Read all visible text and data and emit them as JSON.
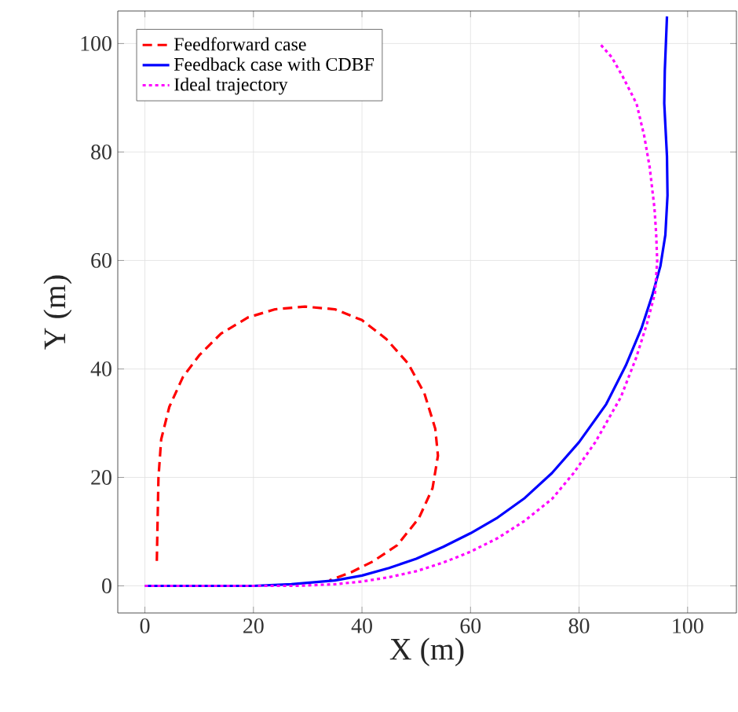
{
  "chart_data": {
    "type": "line",
    "xlabel": "X (m)",
    "ylabel": "Y (m)",
    "xlim": [
      -5,
      109
    ],
    "ylim": [
      -5,
      106
    ],
    "xticks": [
      0,
      20,
      40,
      60,
      80,
      100
    ],
    "yticks": [
      0,
      20,
      40,
      60,
      80,
      100
    ],
    "grid": true,
    "legend": "top left",
    "series": [
      {
        "name": "Feedforward case",
        "color": "#ff0000",
        "line_style": "dashed",
        "x": [
          2.2,
          2.3,
          2.5,
          3,
          4.5,
          7,
          10,
          14,
          19,
          24,
          29.5,
          35,
          40,
          44.5,
          48.5,
          51.5,
          53.5,
          54,
          53,
          50.5,
          46.5,
          42,
          38,
          34
        ],
        "values": [
          4.6,
          10,
          20,
          27,
          33,
          38.5,
          42.5,
          46.5,
          49.5,
          51,
          51.5,
          51,
          49,
          45.5,
          41,
          35.5,
          29,
          24,
          18,
          12.5,
          7.5,
          4.5,
          2.5,
          1
        ]
      },
      {
        "name": "Feedback case with CDBF",
        "color": "#0000ff",
        "line_style": "solid",
        "x": [
          0,
          20,
          27,
          35,
          40,
          45,
          50,
          55,
          60,
          65,
          70,
          75,
          80,
          85,
          88.6,
          91.5,
          93.5,
          95,
          95.9,
          96.3,
          96.2,
          95.9,
          95.7,
          95.8,
          96.2
        ],
        "values": [
          0,
          0,
          0.3,
          1,
          1.9,
          3.3,
          5,
          7.2,
          9.7,
          12.6,
          16.2,
          20.8,
          26.5,
          33.5,
          40.6,
          47.5,
          53.6,
          59,
          64.7,
          72,
          79.2,
          85,
          89,
          95,
          105
        ]
      },
      {
        "name": "Ideal trajectory",
        "color": "#ff00ff",
        "line_style": "dotted",
        "x": [
          0,
          28,
          35,
          40,
          45,
          50,
          55,
          60,
          65,
          70,
          75,
          79,
          83,
          87.7,
          90.5,
          92.5,
          94,
          94.4,
          94.2,
          93.9,
          93,
          92,
          90.6,
          88,
          86,
          83.8
        ],
        "values": [
          0,
          0,
          0.3,
          0.8,
          1.6,
          2.7,
          4.3,
          6.3,
          8.8,
          12,
          16,
          20.8,
          26.5,
          34.8,
          42,
          48.3,
          54,
          59.9,
          65,
          69.6,
          77.3,
          83,
          88.9,
          94,
          97.5,
          100
        ]
      }
    ]
  }
}
